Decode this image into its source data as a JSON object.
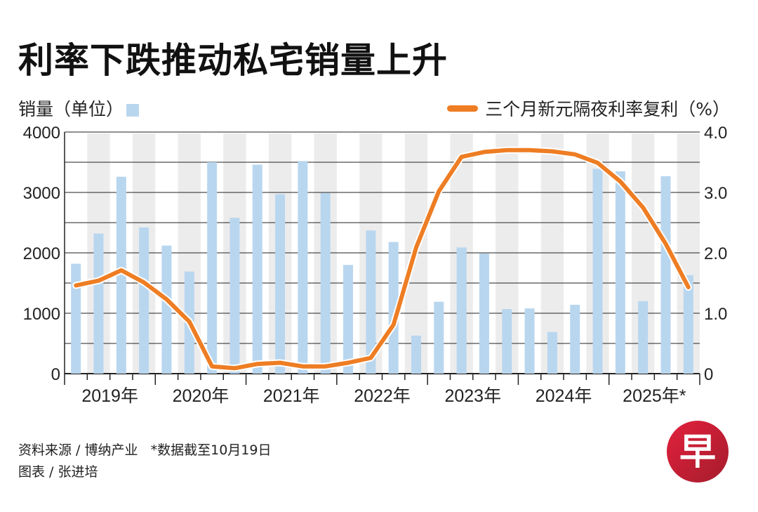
{
  "title": "利率下跌推动私宅销量上升",
  "legend": {
    "bars_label": "销量（单位）",
    "line_label": "三个月新元隔夜利率复利（%）"
  },
  "colors": {
    "bar": "#b9d6ef",
    "line": "#ee7d23",
    "shade": "#ececec"
  },
  "chart_data": {
    "type": "bar+line",
    "categories": [
      "2019Q1",
      "2019Q2",
      "2019Q3",
      "2019Q4",
      "2020Q1",
      "2020Q2",
      "2020Q3",
      "2020Q4",
      "2021Q1",
      "2021Q2",
      "2021Q3",
      "2021Q4",
      "2022Q1",
      "2022Q2",
      "2022Q3",
      "2022Q4",
      "2023Q1",
      "2023Q2",
      "2023Q3",
      "2023Q4",
      "2024Q1",
      "2024Q2",
      "2024Q3",
      "2024Q4",
      "2025Q1",
      "2025Q2",
      "2025Q3",
      "2025Q4"
    ],
    "year_labels": [
      "2019年",
      "2020年",
      "2021年",
      "2022年",
      "2023年",
      "2024年",
      "2025年*"
    ],
    "series": [
      {
        "name": "销量（单位）",
        "axis": "left",
        "type": "bar",
        "values": [
          1820,
          2320,
          3260,
          2420,
          2120,
          1690,
          3500,
          2580,
          3460,
          2970,
          3520,
          2990,
          1800,
          2370,
          2180,
          630,
          1190,
          2090,
          1990,
          1070,
          1080,
          690,
          1140,
          3390,
          3350,
          1200,
          3270,
          1630
        ]
      },
      {
        "name": "三个月新元隔夜利率复利（%）",
        "axis": "right",
        "type": "line",
        "values": [
          1.46,
          1.54,
          1.71,
          1.51,
          1.23,
          0.86,
          0.12,
          0.09,
          0.16,
          0.18,
          0.12,
          0.12,
          0.18,
          0.26,
          0.81,
          2.09,
          3.02,
          3.59,
          3.67,
          3.7,
          3.7,
          3.68,
          3.63,
          3.49,
          3.18,
          2.75,
          2.15,
          1.43
        ]
      }
    ],
    "yleft": {
      "lim": [
        0,
        4000
      ],
      "ticks": [
        "0",
        "1000",
        "2000",
        "3000",
        "4000"
      ]
    },
    "yright": {
      "lim": [
        0,
        4.0
      ],
      "ticks": [
        "0",
        "1.0",
        "2.0",
        "3.0",
        "4.0"
      ]
    },
    "grid": true
  },
  "footer": {
    "source": "资料来源 / 博纳产业",
    "note": "*数据截至10月19日",
    "credit": "图表 / 张进培"
  },
  "logo_text": "早"
}
